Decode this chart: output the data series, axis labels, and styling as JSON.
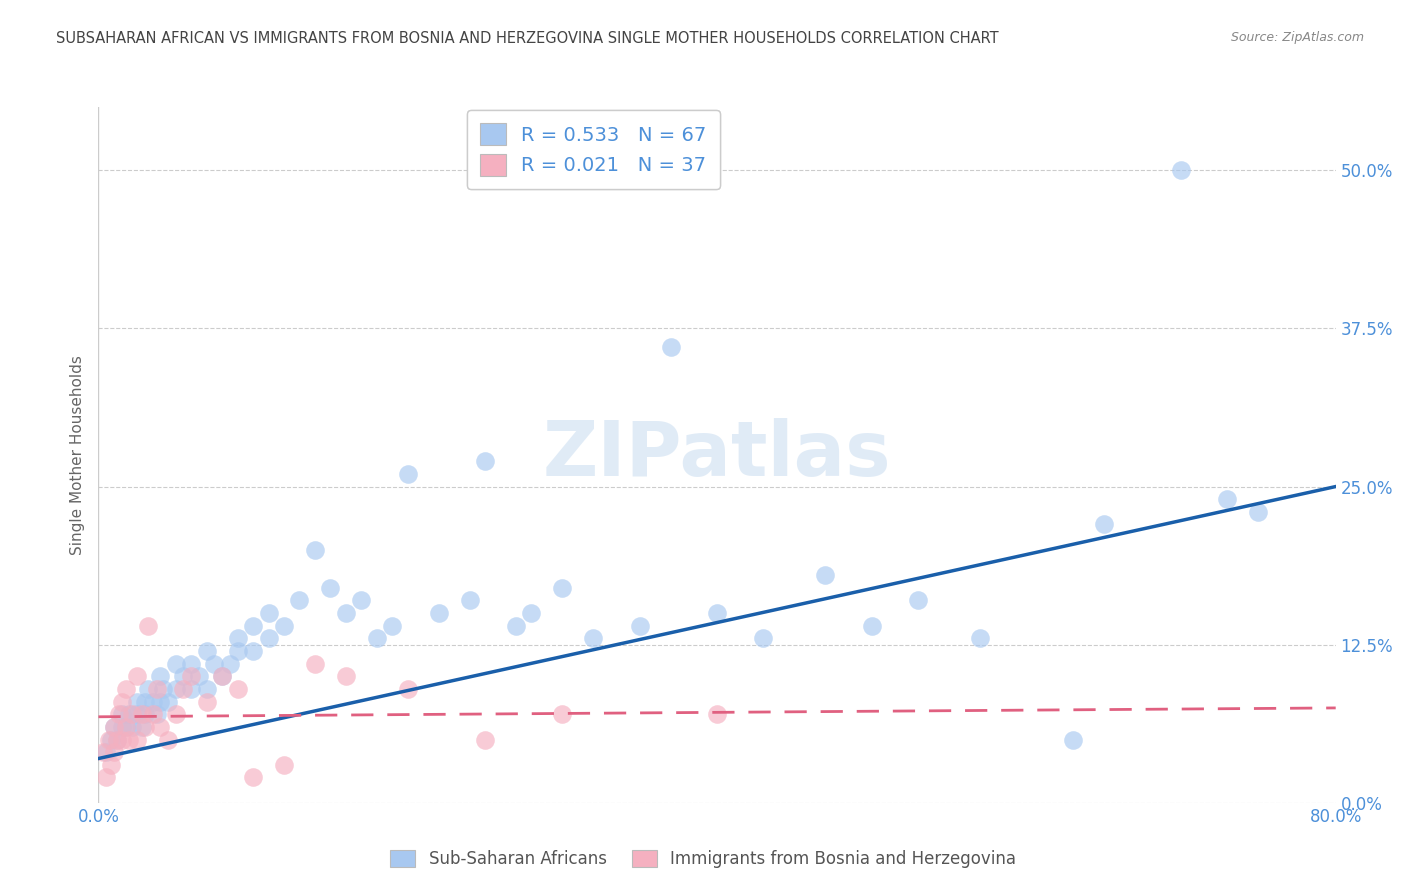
{
  "title": "SUBSAHARAN AFRICAN VS IMMIGRANTS FROM BOSNIA AND HERZEGOVINA SINGLE MOTHER HOUSEHOLDS CORRELATION CHART",
  "source": "Source: ZipAtlas.com",
  "ylabel": "Single Mother Households",
  "ytick_labels": [
    "0.0%",
    "12.5%",
    "25.0%",
    "37.5%",
    "50.0%"
  ],
  "ytick_values": [
    0.0,
    0.125,
    0.25,
    0.375,
    0.5
  ],
  "xlim": [
    0.0,
    0.8
  ],
  "ylim": [
    0.0,
    0.55
  ],
  "blue_R": 0.533,
  "blue_N": 67,
  "pink_R": 0.021,
  "pink_N": 37,
  "blue_label": "Sub-Saharan Africans",
  "pink_label": "Immigrants from Bosnia and Herzegovina",
  "blue_color": "#a8c8f0",
  "blue_line_color": "#1a5faa",
  "pink_color": "#f5b0c0",
  "pink_line_color": "#e06080",
  "blue_line_x0": 0.0,
  "blue_line_y0": 0.035,
  "blue_line_x1": 0.8,
  "blue_line_y1": 0.25,
  "pink_line_x0": 0.0,
  "pink_line_y0": 0.068,
  "pink_line_x1": 0.8,
  "pink_line_y1": 0.075,
  "blue_scatter_x": [
    0.005,
    0.008,
    0.01,
    0.012,
    0.015,
    0.015,
    0.018,
    0.02,
    0.022,
    0.025,
    0.025,
    0.028,
    0.03,
    0.03,
    0.032,
    0.035,
    0.038,
    0.04,
    0.04,
    0.042,
    0.045,
    0.05,
    0.05,
    0.055,
    0.06,
    0.06,
    0.065,
    0.07,
    0.07,
    0.075,
    0.08,
    0.085,
    0.09,
    0.09,
    0.1,
    0.1,
    0.11,
    0.11,
    0.12,
    0.13,
    0.14,
    0.15,
    0.16,
    0.17,
    0.18,
    0.19,
    0.2,
    0.22,
    0.24,
    0.25,
    0.27,
    0.28,
    0.3,
    0.32,
    0.35,
    0.37,
    0.4,
    0.43,
    0.47,
    0.5,
    0.53,
    0.57,
    0.63,
    0.65,
    0.7,
    0.73,
    0.75
  ],
  "blue_scatter_y": [
    0.04,
    0.05,
    0.06,
    0.05,
    0.06,
    0.07,
    0.06,
    0.07,
    0.06,
    0.08,
    0.07,
    0.06,
    0.07,
    0.08,
    0.09,
    0.08,
    0.07,
    0.08,
    0.1,
    0.09,
    0.08,
    0.09,
    0.11,
    0.1,
    0.09,
    0.11,
    0.1,
    0.09,
    0.12,
    0.11,
    0.1,
    0.11,
    0.12,
    0.13,
    0.12,
    0.14,
    0.13,
    0.15,
    0.14,
    0.16,
    0.2,
    0.17,
    0.15,
    0.16,
    0.13,
    0.14,
    0.26,
    0.15,
    0.16,
    0.27,
    0.14,
    0.15,
    0.17,
    0.13,
    0.14,
    0.36,
    0.15,
    0.13,
    0.18,
    0.14,
    0.16,
    0.13,
    0.05,
    0.22,
    0.5,
    0.24,
    0.23
  ],
  "pink_scatter_x": [
    0.003,
    0.005,
    0.007,
    0.008,
    0.01,
    0.01,
    0.012,
    0.013,
    0.015,
    0.015,
    0.018,
    0.018,
    0.02,
    0.022,
    0.025,
    0.025,
    0.028,
    0.03,
    0.032,
    0.035,
    0.038,
    0.04,
    0.045,
    0.05,
    0.055,
    0.06,
    0.07,
    0.08,
    0.09,
    0.1,
    0.12,
    0.14,
    0.16,
    0.2,
    0.25,
    0.3,
    0.4
  ],
  "pink_scatter_y": [
    0.04,
    0.02,
    0.05,
    0.03,
    0.04,
    0.06,
    0.05,
    0.07,
    0.05,
    0.08,
    0.06,
    0.09,
    0.05,
    0.07,
    0.05,
    0.1,
    0.07,
    0.06,
    0.14,
    0.07,
    0.09,
    0.06,
    0.05,
    0.07,
    0.09,
    0.1,
    0.08,
    0.1,
    0.09,
    0.02,
    0.03,
    0.11,
    0.1,
    0.09,
    0.05,
    0.07,
    0.07
  ],
  "watermark": "ZIPatlas",
  "background_color": "#ffffff",
  "grid_color": "#cccccc",
  "title_color": "#333333",
  "axis_color": "#4d90d9"
}
